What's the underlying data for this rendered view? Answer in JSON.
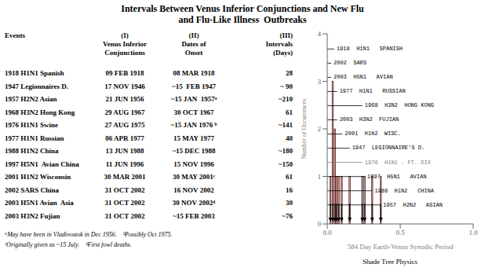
{
  "chart_data": {
    "type": "bar",
    "title": "Intervals Between Venus Inferior Conjunctions and New Flu",
    "subtitle": "and Flu-Like Illness  Outbreaks",
    "x": [
      0.038,
      0.022,
      0.053,
      0.063,
      0.079,
      0.099,
      0.154,
      0.241,
      0.257,
      0.308,
      0.367
    ],
    "values": [
      3,
      1,
      2,
      1,
      1,
      1,
      1,
      1,
      1,
      1,
      1
    ],
    "colors": [
      "#f08080",
      "#f08080",
      "#f08080",
      "#f08080",
      "#f08080",
      "#f08080",
      "#f08080",
      "#aaaaaa",
      "#f08080",
      "#f08080",
      "#f08080"
    ],
    "xlim": [
      0,
      1.0
    ],
    "xticks": [
      {
        "value": 0,
        "label": "0.0"
      },
      0.5,
      {
        "value": 1.0,
        "label": "1.0"
      }
    ],
    "ylim": [
      0,
      4
    ],
    "yticks": [
      0,
      1,
      2,
      3,
      4
    ],
    "grid": false,
    "xlabel": "584 Day Earth-Venus Synodic Period",
    "ylabel": "Number of Occurrences",
    "annotations": [
      {
        "text": "1918  H1N1   SPANISH",
        "x": 0.048,
        "color": "black"
      },
      {
        "text": "2002  SARS",
        "x": 0.027,
        "color": "black"
      },
      {
        "text": "2003  H5N1   AVIAN",
        "x": 0.027,
        "color": "black"
      },
      {
        "text": "1977  H1N1   RUSSIAN",
        "x": 0.068,
        "color": "black"
      },
      {
        "text": "1968  H3N2  HONG KONG",
        "x": 0.241,
        "color": "black"
      },
      {
        "text": "2003  H3N2  FUJIAN",
        "x": 0.068,
        "color": "black"
      },
      {
        "text": "2001  H1N2  WISC.",
        "x": 0.104,
        "color": "black"
      },
      {
        "text": "1947  LEGIONNAIRE'S D.",
        "x": 0.154,
        "color": "black"
      },
      {
        "text": "1976  H1N1 - FT. DIX",
        "x": 0.241,
        "color": "gray"
      },
      {
        "text": "1997  H5N1   AVIAN",
        "x": 0.257,
        "color": "black"
      },
      {
        "text": "1988  H1N2   CHINA",
        "x": 0.308,
        "color": "black"
      },
      {
        "text": "1957  H2N2   ASIAN",
        "x": 0.367,
        "color": "black"
      }
    ],
    "table": {
      "columns": [
        "Events",
        "(I)\nVenus Inferior\nConjunctions",
        "(II)\nDates of\nOnset",
        "(III)\nIntervals\n(Days)"
      ],
      "rows": [
        [
          "1918 H1N1 Spanish",
          "09 FEB 1918",
          "08 MAR 1918",
          "28"
        ],
        [
          "1947 Legionnaires D.",
          "17 NOV 1946",
          "~15  FEB 1947",
          "~ 90"
        ],
        [
          "1957 H2N2 Asian",
          "21 JUN 1956",
          "~15 JAN  1957ᵃ",
          "~210"
        ],
        [
          "1968 H3N2 Hong Kong",
          "29 AUG 1967",
          "30 OCT 1967",
          "61"
        ],
        [
          "1976 H1N1 Swine",
          "27 AUG 1975",
          "~15 JAN 1976 ᵇ",
          "~141"
        ],
        [
          "1977 H1N1 Russian",
          "06 APR 1977",
          "15 MAY 1977",
          "40"
        ],
        [
          "1988 H1N2 China",
          "13 JUN 1988",
          "~15 DEC 1988",
          "~180"
        ],
        [
          "1997 H5N1  Avian China",
          "11 JUN 1996",
          "15 NOV 1996",
          "~150"
        ],
        [
          "2001 H1N2 Wisconsin",
          "30 MAR 2001",
          "30 MAY 2001ᶜ",
          "61"
        ],
        [
          "2002 SARS China",
          "31 OCT 2002",
          "16 NOV 2002",
          "16"
        ],
        [
          "2003 H5N1 Avian  Asia",
          "31 OCT 2002",
          "30 NOV 2002ᵈ",
          "30"
        ],
        [
          "2003 H3N2 Fujian",
          "31 OCT 2002",
          "~15 FEB 2003",
          "~76"
        ]
      ]
    },
    "footnotes": [
      "ᵃMay have been in Vladivostok in Dec 1956.    ᵇPossibly Oct 1975.",
      "ᶜOriginally given as ~15 July.    ᵈFirst fowl deaths."
    ],
    "credit": "Shade Tree Physics"
  }
}
